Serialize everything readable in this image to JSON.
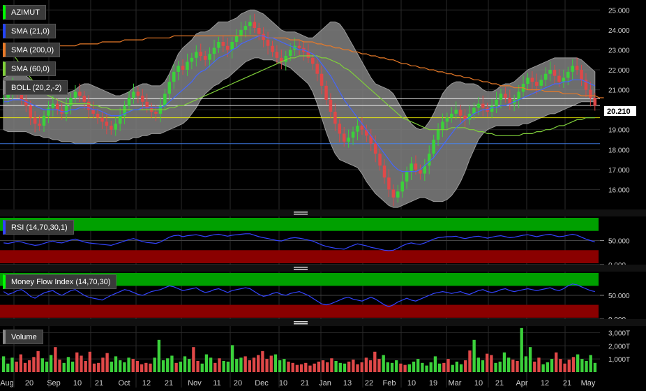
{
  "chart_data": {
    "type": "line",
    "title": "",
    "symbol": "AZIMUT",
    "last_price_label": "20.210",
    "x_labels": [
      "Aug",
      "20",
      "Sep",
      "10",
      "21",
      "Oct",
      "12",
      "21",
      "Nov",
      "11",
      "20",
      "Dec",
      "10",
      "21",
      "Jan",
      "13",
      "22",
      "Feb",
      "10",
      "19",
      "Mar",
      "10",
      "21",
      "Apr",
      "12",
      "21",
      "May"
    ],
    "price_panel": {
      "ylim": [
        15.0,
        25.5
      ],
      "ticks": [
        "25.000",
        "24.000",
        "23.000",
        "22.000",
        "21.000",
        "20.000",
        "19.000",
        "18.000",
        "17.000",
        "16.000"
      ],
      "horizontal_lines": [
        {
          "value": 20.21,
          "color": "#ffffff"
        },
        {
          "value": 20.55,
          "color": "#ffffff"
        },
        {
          "value": 19.6,
          "color": "#ffff00"
        },
        {
          "value": 18.3,
          "color": "#4488ff"
        }
      ],
      "close": [
        20.6,
        20.9,
        21.2,
        21.0,
        20.5,
        20.2,
        19.6,
        19.3,
        19.2,
        19.7,
        20.1,
        20.3,
        20.0,
        19.8,
        20.2,
        20.6,
        20.9,
        20.7,
        20.4,
        20.0,
        19.8,
        19.6,
        19.4,
        19.2,
        19.0,
        19.3,
        19.7,
        20.2,
        20.6,
        20.9,
        20.7,
        20.4,
        20.1,
        19.9,
        19.8,
        20.2,
        20.8,
        21.4,
        21.9,
        22.2,
        22.0,
        22.4,
        22.6,
        22.9,
        22.7,
        22.5,
        22.8,
        23.1,
        23.4,
        23.2,
        23.0,
        23.4,
        23.7,
        24.0,
        24.2,
        24.4,
        24.1,
        23.8,
        23.5,
        23.2,
        22.9,
        22.6,
        22.4,
        22.7,
        23.0,
        23.2,
        23.1,
        22.9,
        22.6,
        22.3,
        21.8,
        21.2,
        20.5,
        19.9,
        19.3,
        18.8,
        18.4,
        18.6,
        18.9,
        19.2,
        19.0,
        18.7,
        18.3,
        17.8,
        17.2,
        16.6,
        16.0,
        15.6,
        15.9,
        16.4,
        16.9,
        17.3,
        17.0,
        16.8,
        17.2,
        17.8,
        18.5,
        19.0,
        19.4,
        19.6,
        19.8,
        20.0,
        19.7,
        19.5,
        19.8,
        20.1,
        20.3,
        20.1,
        19.9,
        20.2,
        20.5,
        20.8,
        20.6,
        20.3,
        20.5,
        20.9,
        21.3,
        21.6,
        21.4,
        21.2,
        21.5,
        21.8,
        22.0,
        21.7,
        21.4,
        21.6,
        21.9,
        22.2,
        22.0,
        21.5,
        21.0,
        20.6,
        20.2
      ],
      "sma21": [
        20.4,
        20.4,
        20.5,
        20.5,
        20.5,
        20.4,
        20.3,
        20.2,
        20.1,
        20.0,
        20.0,
        20.0,
        20.0,
        19.9,
        19.9,
        20.0,
        20.0,
        20.1,
        20.1,
        20.1,
        20.0,
        20.0,
        19.9,
        19.8,
        19.7,
        19.7,
        19.7,
        19.8,
        19.9,
        20.0,
        20.0,
        20.1,
        20.1,
        20.1,
        20.1,
        20.1,
        20.2,
        20.4,
        20.6,
        20.8,
        21.0,
        21.2,
        21.4,
        21.7,
        21.9,
        22.0,
        22.2,
        22.4,
        22.6,
        22.7,
        22.8,
        23.0,
        23.1,
        23.3,
        23.4,
        23.5,
        23.6,
        23.7,
        23.7,
        23.6,
        23.6,
        23.5,
        23.4,
        23.3,
        23.2,
        23.1,
        23.0,
        23.0,
        22.9,
        22.8,
        22.6,
        22.3,
        22.0,
        21.7,
        21.3,
        20.9,
        20.5,
        20.2,
        19.9,
        19.6,
        19.3,
        19.0,
        18.7,
        18.4,
        18.1,
        17.8,
        17.5,
        17.2,
        17.0,
        16.9,
        16.9,
        16.9,
        16.9,
        17.0,
        17.2,
        17.4,
        17.6,
        17.9,
        18.2,
        18.5,
        18.8,
        19.1,
        19.3,
        19.5,
        19.6,
        19.8,
        19.9,
        20.0,
        20.0,
        20.1,
        20.1,
        20.2,
        20.2,
        20.3,
        20.4,
        20.5,
        20.6,
        20.7,
        20.8,
        20.9,
        21.0,
        21.1,
        21.2,
        21.3,
        21.3,
        21.4,
        21.4,
        21.5,
        21.5,
        21.5,
        21.4,
        21.3,
        21.2
      ],
      "sma60": [
        23.2,
        23.0,
        22.8,
        22.5,
        22.2,
        21.9,
        21.6,
        21.3,
        21.1,
        20.9,
        20.7,
        20.6,
        20.5,
        20.4,
        20.3,
        20.3,
        20.3,
        20.3,
        20.3,
        20.3,
        20.2,
        20.2,
        20.1,
        20.1,
        20.0,
        20.0,
        20.0,
        20.0,
        20.0,
        20.0,
        20.0,
        20.0,
        20.0,
        20.0,
        20.0,
        20.0,
        20.0,
        20.1,
        20.1,
        20.2,
        20.2,
        20.3,
        20.4,
        20.5,
        20.6,
        20.7,
        20.8,
        20.9,
        21.0,
        21.1,
        21.2,
        21.3,
        21.4,
        21.5,
        21.6,
        21.7,
        21.8,
        21.9,
        22.0,
        22.1,
        22.2,
        22.3,
        22.4,
        22.5,
        22.6,
        22.6,
        22.7,
        22.7,
        22.7,
        22.7,
        22.7,
        22.6,
        22.6,
        22.5,
        22.4,
        22.3,
        22.1,
        22.0,
        21.8,
        21.6,
        21.4,
        21.2,
        21.0,
        20.8,
        20.6,
        20.4,
        20.2,
        20.0,
        19.8,
        19.6,
        19.5,
        19.4,
        19.3,
        19.2,
        19.1,
        19.0,
        19.0,
        19.0,
        19.0,
        19.0,
        19.1,
        19.1,
        19.1,
        19.1,
        19.0,
        19.0,
        18.9,
        18.9,
        18.8,
        18.8,
        18.7,
        18.7,
        18.7,
        18.7,
        18.7,
        18.7,
        18.8,
        18.8,
        18.8,
        18.9,
        18.9,
        19.0,
        19.0,
        19.1,
        19.2,
        19.2,
        19.3,
        19.4,
        19.5,
        19.5,
        19.6,
        19.6,
        19.6
      ],
      "sma200": [
        23.1,
        23.1,
        23.1,
        23.1,
        23.1,
        23.1,
        23.1,
        23.1,
        23.1,
        23.1,
        23.1,
        23.2,
        23.2,
        23.2,
        23.2,
        23.2,
        23.2,
        23.3,
        23.3,
        23.3,
        23.3,
        23.3,
        23.4,
        23.4,
        23.4,
        23.4,
        23.4,
        23.5,
        23.5,
        23.5,
        23.5,
        23.5,
        23.6,
        23.6,
        23.6,
        23.6,
        23.6,
        23.6,
        23.7,
        23.7,
        23.7,
        23.7,
        23.7,
        23.7,
        23.7,
        23.7,
        23.7,
        23.7,
        23.7,
        23.7,
        23.7,
        23.7,
        23.7,
        23.7,
        23.7,
        23.7,
        23.7,
        23.7,
        23.7,
        23.6,
        23.6,
        23.6,
        23.6,
        23.6,
        23.5,
        23.5,
        23.5,
        23.4,
        23.4,
        23.4,
        23.3,
        23.3,
        23.2,
        23.2,
        23.1,
        23.1,
        23.0,
        23.0,
        22.9,
        22.9,
        22.8,
        22.8,
        22.7,
        22.7,
        22.6,
        22.6,
        22.5,
        22.5,
        22.4,
        22.3,
        22.3,
        22.2,
        22.2,
        22.1,
        22.1,
        22.0,
        22.0,
        21.9,
        21.9,
        21.8,
        21.8,
        21.7,
        21.7,
        21.6,
        21.6,
        21.5,
        21.5,
        21.4,
        21.4,
        21.3,
        21.3,
        21.2,
        21.2,
        21.2,
        21.1,
        21.1,
        21.1,
        21.0,
        21.0,
        21.0,
        21.0,
        20.9,
        20.9,
        20.9,
        20.9,
        20.8,
        20.8,
        20.8,
        20.8,
        20.7,
        20.7,
        20.7,
        20.7,
        20.6,
        20.6
      ],
      "boll_upper": [
        21.6,
        21.7,
        21.9,
        21.9,
        21.9,
        21.7,
        21.5,
        21.3,
        21.1,
        21.0,
        20.9,
        20.9,
        20.9,
        20.8,
        20.8,
        20.9,
        21.0,
        21.2,
        21.3,
        21.3,
        21.2,
        21.1,
        21.0,
        20.9,
        20.8,
        20.7,
        20.7,
        20.8,
        20.9,
        21.1,
        21.2,
        21.3,
        21.3,
        21.2,
        21.2,
        21.2,
        21.4,
        21.8,
        22.3,
        22.8,
        23.1,
        23.3,
        23.5,
        23.8,
        23.9,
        23.9,
        24.0,
        24.2,
        24.4,
        24.4,
        24.4,
        24.5,
        24.6,
        24.8,
        24.9,
        25.0,
        25.0,
        24.9,
        24.8,
        24.6,
        24.4,
        24.2,
        24.0,
        23.9,
        23.9,
        23.9,
        23.8,
        23.7,
        23.6,
        23.6,
        23.8,
        24.0,
        24.2,
        24.4,
        24.4,
        24.3,
        24.0,
        23.6,
        23.2,
        22.8,
        22.4,
        22.0,
        21.6,
        21.3,
        21.2,
        21.1,
        21.0,
        20.8,
        20.4,
        20.0,
        19.6,
        19.3,
        19.1,
        19.0,
        19.1,
        19.4,
        19.8,
        20.3,
        20.8,
        21.1,
        21.3,
        21.4,
        21.4,
        21.3,
        21.3,
        21.3,
        21.2,
        21.0,
        20.9,
        20.9,
        21.0,
        21.2,
        21.3,
        21.3,
        21.4,
        21.6,
        21.8,
        22.0,
        22.1,
        22.2,
        22.3,
        22.4,
        22.5,
        22.6,
        22.6,
        22.6,
        22.6,
        22.6,
        22.6,
        22.5,
        22.3,
        22.1,
        21.9
      ],
      "boll_lower": [
        19.0,
        18.9,
        18.9,
        18.9,
        18.9,
        18.9,
        18.8,
        18.7,
        18.7,
        18.6,
        18.6,
        18.5,
        18.5,
        18.4,
        18.4,
        18.4,
        18.3,
        18.3,
        18.3,
        18.3,
        18.3,
        18.4,
        18.4,
        18.4,
        18.4,
        18.4,
        18.5,
        18.5,
        18.5,
        18.6,
        18.6,
        18.7,
        18.7,
        18.8,
        18.8,
        18.8,
        18.9,
        19.0,
        19.1,
        19.2,
        19.3,
        19.5,
        19.8,
        20.1,
        20.5,
        20.8,
        21.0,
        21.2,
        21.3,
        21.5,
        21.6,
        21.8,
        22.0,
        22.2,
        22.4,
        22.5,
        22.6,
        22.6,
        22.5,
        22.5,
        22.5,
        22.4,
        22.3,
        22.2,
        22.1,
        21.9,
        21.7,
        21.5,
        21.3,
        20.9,
        20.3,
        19.6,
        18.9,
        18.3,
        17.8,
        17.5,
        17.4,
        17.3,
        17.2,
        17.1,
        16.8,
        16.4,
        16.1,
        15.8,
        15.6,
        15.4,
        15.2,
        15.1,
        15.1,
        15.2,
        15.3,
        15.4,
        15.5,
        15.6,
        15.6,
        15.5,
        15.4,
        15.4,
        15.4,
        15.5,
        15.7,
        16.0,
        16.4,
        16.9,
        17.5,
        18.0,
        18.5,
        18.8,
        19.0,
        19.1,
        19.2,
        19.2,
        19.2,
        19.2,
        19.2,
        19.2,
        19.3,
        19.3,
        19.4,
        19.5,
        19.6,
        19.7,
        19.8,
        19.8,
        19.9,
        20.0,
        20.1,
        20.2,
        20.3,
        20.4,
        20.4,
        20.4,
        20.4
      ]
    },
    "rsi_panel": {
      "label": "RSI (14,70,30,1)",
      "ticks": [
        "50.000",
        "0.000"
      ],
      "ylim": [
        0,
        100
      ],
      "values": [
        45,
        44,
        46,
        48,
        47,
        44,
        42,
        40,
        41,
        44,
        47,
        49,
        46,
        45,
        48,
        51,
        53,
        50,
        47,
        45,
        44,
        43,
        42,
        41,
        40,
        43,
        46,
        49,
        52,
        54,
        51,
        48,
        46,
        45,
        44,
        47,
        52,
        57,
        60,
        61,
        58,
        60,
        61,
        62,
        60,
        58,
        60,
        62,
        63,
        61,
        59,
        61,
        62,
        63,
        64,
        64,
        61,
        58,
        56,
        54,
        52,
        50,
        49,
        52,
        55,
        56,
        55,
        53,
        51,
        49,
        45,
        41,
        38,
        36,
        34,
        33,
        32,
        36,
        40,
        43,
        41,
        39,
        36,
        34,
        32,
        30,
        29,
        30,
        34,
        39,
        43,
        45,
        43,
        42,
        45,
        49,
        53,
        56,
        57,
        58,
        58,
        59,
        56,
        54,
        56,
        58,
        59,
        57,
        55,
        57,
        59,
        60,
        58,
        56,
        57,
        59,
        61,
        62,
        60,
        58,
        60,
        62,
        63,
        60,
        58,
        59,
        61,
        63,
        61,
        57,
        53,
        50,
        47
      ]
    },
    "mfi_panel": {
      "label": "Money Flow Index (14,70,30)",
      "ticks": [
        "50.000",
        "0.000"
      ],
      "ylim": [
        0,
        100
      ],
      "values": [
        58,
        52,
        55,
        60,
        62,
        56,
        48,
        44,
        50,
        55,
        58,
        60,
        54,
        50,
        55,
        60,
        62,
        56,
        50,
        46,
        44,
        42,
        40,
        45,
        50,
        54,
        58,
        62,
        60,
        56,
        52,
        50,
        54,
        58,
        60,
        62,
        66,
        70,
        68,
        64,
        60,
        62,
        64,
        66,
        60,
        56,
        58,
        62,
        64,
        60,
        56,
        60,
        62,
        64,
        66,
        64,
        58,
        52,
        48,
        50,
        54,
        56,
        52,
        50,
        54,
        56,
        58,
        54,
        50,
        44,
        38,
        32,
        30,
        32,
        36,
        40,
        44,
        46,
        42,
        40,
        38,
        42,
        46,
        42,
        36,
        30,
        26,
        30,
        36,
        40,
        44,
        40,
        38,
        42,
        46,
        50,
        54,
        56,
        58,
        56,
        54,
        56,
        58,
        54,
        52,
        56,
        60,
        62,
        58,
        56,
        58,
        62,
        64,
        60,
        58,
        60,
        62,
        64,
        62,
        60,
        62,
        64,
        66,
        62,
        60,
        64,
        70,
        74,
        72,
        68,
        64,
        60,
        58
      ]
    },
    "volume_panel": {
      "label": "Volume",
      "ticks": [
        "3,000T",
        "2,000T",
        "1,000T"
      ],
      "ylim": [
        0,
        3500
      ],
      "values": [
        1200,
        650,
        1100,
        800,
        1350,
        700,
        900,
        1150,
        1600,
        1050,
        800,
        1300,
        1900,
        950,
        700,
        1150,
        800,
        1500,
        1250,
        850,
        1550,
        650,
        700,
        1100,
        1450,
        800,
        1200,
        900,
        750,
        1100,
        1000,
        850,
        600,
        700,
        650,
        1100,
        2450,
        900,
        1050,
        1250,
        700,
        800,
        1200,
        1000,
        1900,
        850,
        650,
        1350,
        1100,
        700,
        1050,
        850,
        800,
        2050,
        1000,
        1100,
        1200,
        900,
        1100,
        1300,
        1600,
        1000,
        1250,
        1350,
        900,
        1000,
        800,
        700,
        550,
        600,
        700,
        500,
        650,
        800,
        900,
        750,
        1050,
        850,
        700,
        650,
        800,
        950,
        600,
        750,
        1100,
        900,
        1550,
        1000,
        1300,
        750,
        700,
        900,
        650,
        550,
        600,
        800,
        1000,
        700,
        500,
        750,
        1200,
        650,
        700,
        1000,
        550,
        800,
        600,
        900,
        1650,
        2450,
        1100,
        900,
        1400,
        1300,
        700,
        800,
        1500,
        1100,
        950,
        850,
        3350,
        1200,
        1900,
        800,
        1100,
        600,
        750,
        1000,
        1500,
        1000,
        650,
        950,
        1150,
        1350,
        1000,
        850,
        1300,
        700
      ]
    }
  },
  "legends": {
    "azimut": "AZIMUT",
    "sma21": "SMA (21,0)",
    "sma200": "SMA (200,0)",
    "sma60": "SMA (60,0)",
    "boll": "BOLL (20,2,-2)",
    "rsi": "RSI (14,70,30,1)",
    "mfi": "Money Flow Index (14,70,30)",
    "volume": "Volume"
  },
  "colors": {
    "legend_accent": "#00ff00",
    "sma21": "#4466ff",
    "sma200": "#e87a28",
    "sma60": "#7fcf3a",
    "boll_band": "#808080",
    "up_candle": "#3bd13b",
    "down_candle": "#e04848",
    "rsi_overbought": "#00a000",
    "rsi_oversold": "#8a0000",
    "indicator_line": "#3344ff"
  }
}
